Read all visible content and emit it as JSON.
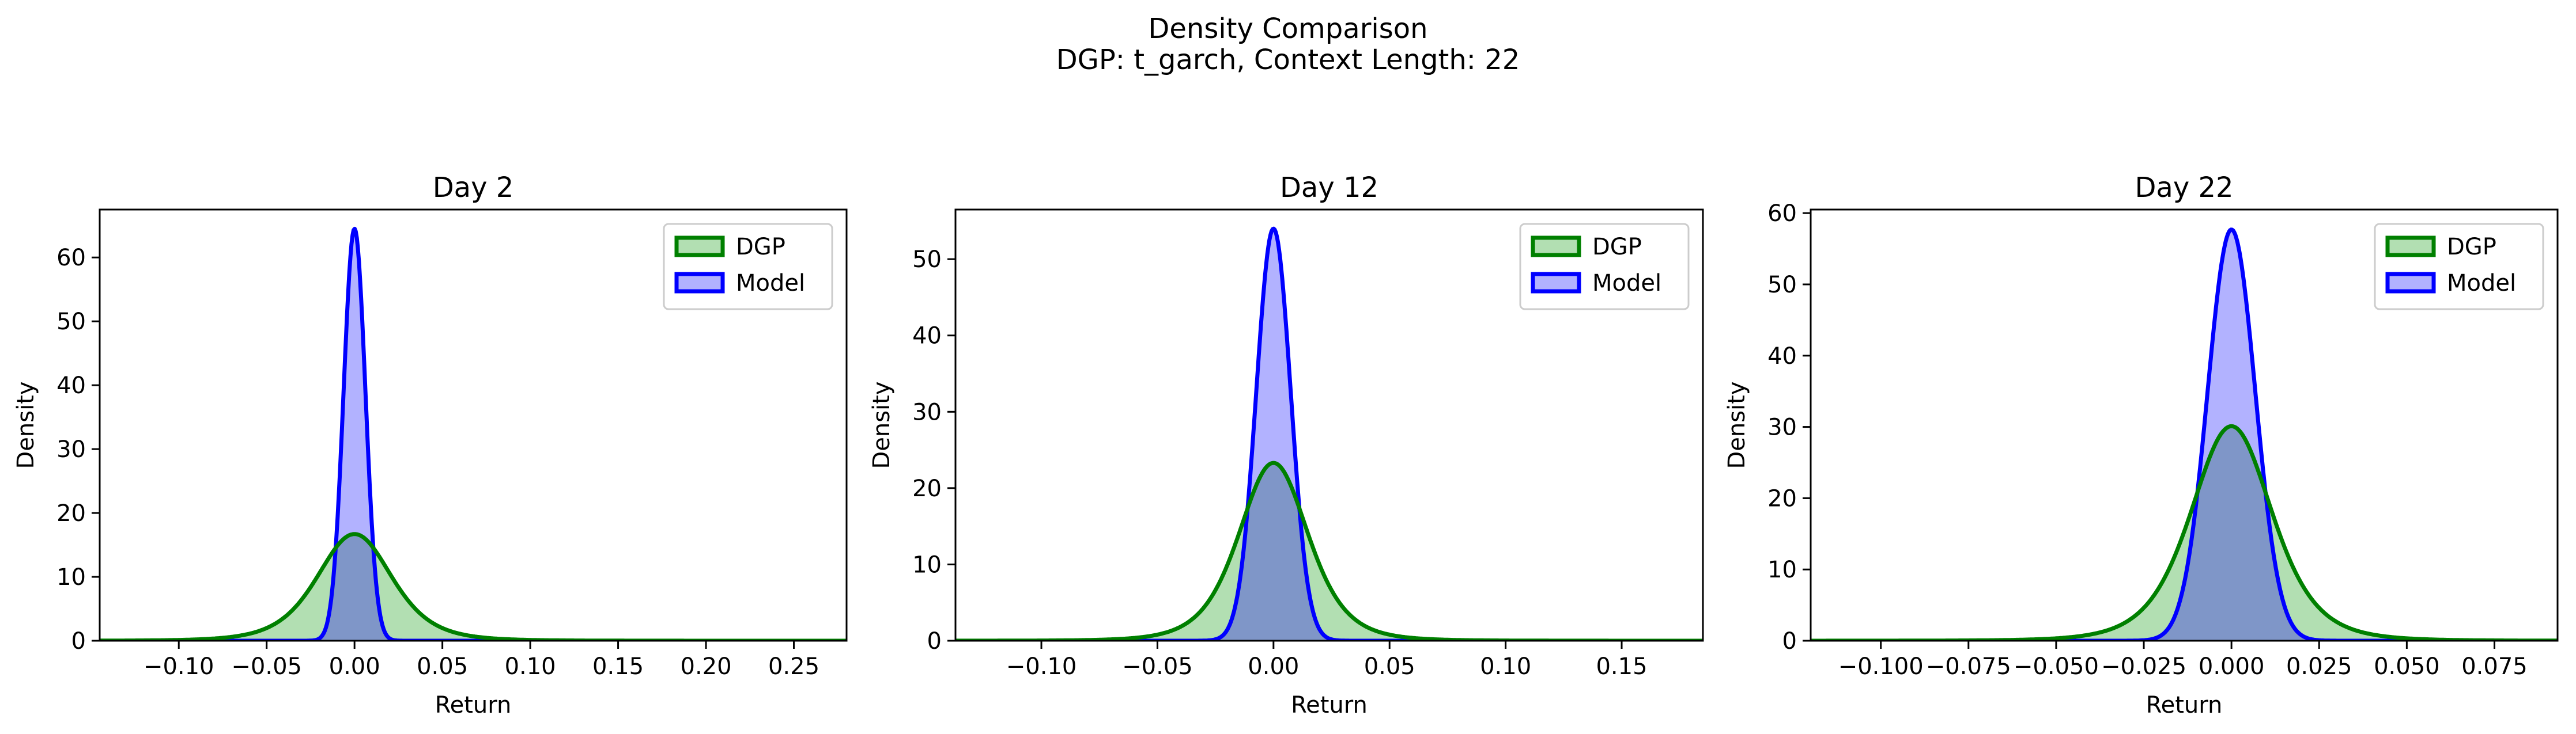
{
  "suptitle": {
    "line1": "Density Comparison",
    "line2": "DGP: t_garch, Context Length: 22"
  },
  "colors": {
    "dgp_line": "#008000",
    "dgp_fill": "#b2dfb2",
    "model_line": "#0000ff",
    "model_fill": "#b2b2ff",
    "overlap_fill": "#7f96c8"
  },
  "chart_data": [
    {
      "type": "area",
      "title": "Day 2",
      "xlabel": "Return",
      "ylabel": "Density",
      "xlim": [
        -0.145,
        0.28
      ],
      "ylim": [
        0,
        67.5
      ],
      "xticks": [
        -0.1,
        -0.05,
        0.0,
        0.05,
        0.1,
        0.15,
        0.2,
        0.25
      ],
      "xtick_labels": [
        "−0.10",
        "−0.05",
        "0.00",
        "0.05",
        "0.10",
        "0.15",
        "0.20",
        "0.25"
      ],
      "yticks": [
        0,
        10,
        20,
        30,
        40,
        50,
        60
      ],
      "ytick_labels": [
        "0",
        "10",
        "20",
        "30",
        "40",
        "50",
        "60"
      ],
      "legend": {
        "placement": "top-right",
        "entries": [
          "DGP",
          "Model"
        ]
      },
      "series": [
        {
          "name": "DGP",
          "kind": "student-t",
          "peak": 16.7,
          "center": 0.0,
          "scale": 0.022,
          "dof": 5
        },
        {
          "name": "Model",
          "kind": "normal",
          "peak": 64.5,
          "center": 0.0,
          "scale": 0.0062
        }
      ]
    },
    {
      "type": "area",
      "title": "Day 12",
      "xlabel": "Return",
      "ylabel": "Density",
      "xlim": [
        -0.137,
        0.185
      ],
      "ylim": [
        0,
        56.5
      ],
      "xticks": [
        -0.1,
        -0.05,
        0.0,
        0.05,
        0.1,
        0.15
      ],
      "xtick_labels": [
        "−0.10",
        "−0.05",
        "0.00",
        "0.05",
        "0.10",
        "0.15"
      ],
      "yticks": [
        0,
        10,
        20,
        30,
        40,
        50
      ],
      "ytick_labels": [
        "0",
        "10",
        "20",
        "30",
        "40",
        "50"
      ],
      "legend": {
        "placement": "top-right",
        "entries": [
          "DGP",
          "Model"
        ]
      },
      "series": [
        {
          "name": "DGP",
          "kind": "student-t",
          "peak": 23.3,
          "center": 0.0,
          "scale": 0.0155,
          "dof": 5
        },
        {
          "name": "Model",
          "kind": "normal",
          "peak": 54.0,
          "center": 0.0,
          "scale": 0.0074
        }
      ]
    },
    {
      "type": "area",
      "title": "Day 22",
      "xlabel": "Return",
      "ylabel": "Density",
      "xlim": [
        -0.12,
        0.093
      ],
      "ylim": [
        0,
        60.5
      ],
      "xticks": [
        -0.1,
        -0.075,
        -0.05,
        -0.025,
        0.0,
        0.025,
        0.05,
        0.075
      ],
      "xtick_labels": [
        "−0.100",
        "−0.075",
        "−0.050",
        "−0.025",
        "0.000",
        "0.025",
        "0.050",
        "0.075"
      ],
      "yticks": [
        0,
        10,
        20,
        30,
        40,
        50,
        60
      ],
      "ytick_labels": [
        "0",
        "10",
        "20",
        "30",
        "40",
        "50",
        "60"
      ],
      "legend": {
        "placement": "top-right",
        "entries": [
          "DGP",
          "Model"
        ]
      },
      "series": [
        {
          "name": "DGP",
          "kind": "student-t",
          "peak": 30.1,
          "center": 0.0,
          "scale": 0.012,
          "dof": 5
        },
        {
          "name": "Model",
          "kind": "normal",
          "peak": 57.7,
          "center": 0.0,
          "scale": 0.0068
        }
      ]
    }
  ]
}
